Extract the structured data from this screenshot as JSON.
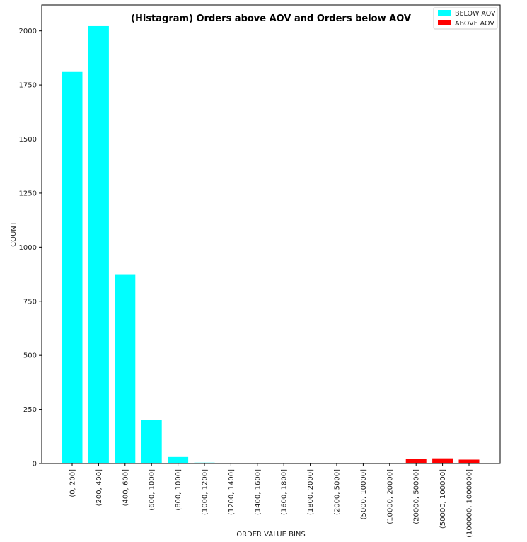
{
  "chart_data": {
    "type": "bar",
    "title": "(Histagram) Orders above AOV and Orders below AOV",
    "xlabel": "ORDER VALUE BINS",
    "ylabel": "COUNT",
    "ylim": [
      0,
      2120
    ],
    "yticks": [
      0,
      250,
      500,
      750,
      1000,
      1250,
      1500,
      1750,
      2000
    ],
    "grid": false,
    "legend_position": "top-right",
    "categories": [
      "(0, 200]",
      "(200, 400]",
      "(400, 600]",
      "(600, 1000]",
      "(800, 1000]",
      "(1000, 1200]",
      "(1200, 1400]",
      "(1400, 1600]",
      "(1600, 1800]",
      "(1800, 2000]",
      "(2000, 5000]",
      "(5000, 10000]",
      "(10000, 20000]",
      "(20000, 50000]",
      "(50000, 100000]",
      "(100000, 1000000]"
    ],
    "series": [
      {
        "name": "BELOW AOV",
        "color": "#00ffff",
        "values": [
          1810,
          2022,
          875,
          200,
          30,
          4,
          1,
          0,
          0,
          0,
          0,
          0,
          0,
          null,
          null,
          null
        ]
      },
      {
        "name": "ABOVE AOV",
        "color": "#ff0000",
        "values": [
          null,
          null,
          null,
          null,
          null,
          null,
          null,
          null,
          null,
          null,
          null,
          null,
          null,
          20,
          24,
          18
        ]
      }
    ]
  }
}
